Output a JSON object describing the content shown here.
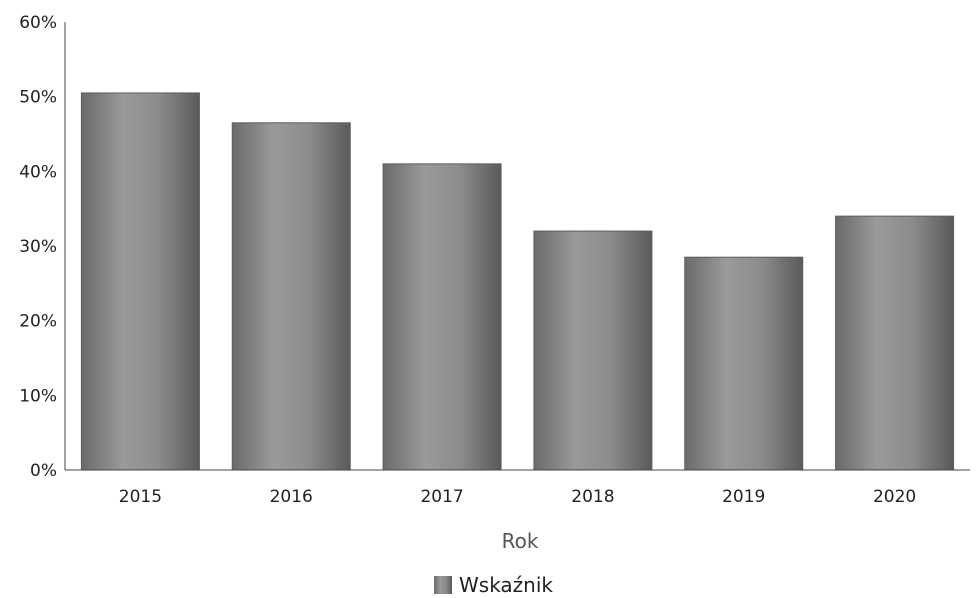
{
  "chart_data": {
    "type": "bar",
    "categories": [
      "2015",
      "2016",
      "2017",
      "2018",
      "2019",
      "2020"
    ],
    "series": [
      {
        "name": "Wskaźnik",
        "values": [
          50.5,
          46.5,
          41.0,
          32.0,
          28.5,
          34.0
        ]
      }
    ],
    "title": "",
    "xlabel": "Rok",
    "ylabel": "",
    "ylim": [
      0,
      60
    ],
    "y_ticks": [
      "0%",
      "10%",
      "20%",
      "30%",
      "40%",
      "50%",
      "60%"
    ],
    "y_tick_values": [
      0,
      10,
      20,
      30,
      40,
      50,
      60
    ],
    "grid": false,
    "legend_position": "bottom-center",
    "colors": {
      "bar": "#8a8a8a",
      "bar_dark": "#5e5e5e",
      "axis": "#444444"
    }
  }
}
